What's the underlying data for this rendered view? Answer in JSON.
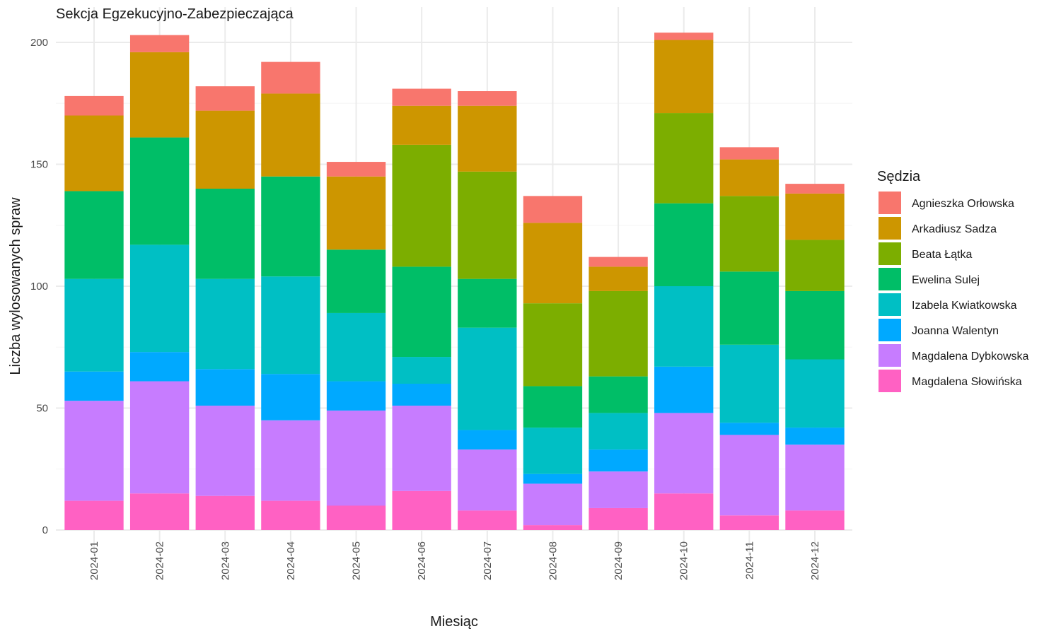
{
  "chart_data": {
    "type": "bar",
    "stacked": true,
    "title": "Sekcja Egzekucyjno-Zabezpieczająca",
    "xlabel": "Miesiąc",
    "ylabel": "Liczba wylosowanych spraw",
    "ylim": [
      0,
      208
    ],
    "yticks": [
      0,
      50,
      100,
      150,
      200
    ],
    "grid": true,
    "legend_title": "Sędzia",
    "legend_position": "right",
    "categories": [
      "2024-01",
      "2024-02",
      "2024-03",
      "2024-04",
      "2024-05",
      "2024-06",
      "2024-07",
      "2024-08",
      "2024-09",
      "2024-10",
      "2024-11",
      "2024-12"
    ],
    "series": [
      {
        "name": "Magdalena Słowińska",
        "color": "#FF61C3",
        "values": [
          12,
          15,
          14,
          12,
          10,
          16,
          8,
          2,
          9,
          15,
          6,
          8
        ]
      },
      {
        "name": "Magdalena Dybkowska",
        "color": "#C77CFF",
        "values": [
          41,
          46,
          37,
          33,
          39,
          35,
          25,
          17,
          15,
          33,
          33,
          27
        ]
      },
      {
        "name": "Joanna Walentyn",
        "color": "#00A9FF",
        "values": [
          12,
          12,
          15,
          19,
          12,
          9,
          8,
          4,
          9,
          19,
          5,
          7
        ]
      },
      {
        "name": "Izabela Kwiatkowska",
        "color": "#00BFC4",
        "values": [
          38,
          44,
          37,
          40,
          28,
          11,
          42,
          19,
          15,
          33,
          32,
          28
        ]
      },
      {
        "name": "Ewelina Sulej",
        "color": "#00BE67",
        "values": [
          36,
          44,
          37,
          41,
          26,
          37,
          20,
          17,
          15,
          34,
          30,
          28
        ]
      },
      {
        "name": "Beata Łątka",
        "color": "#7CAE00",
        "values": [
          0,
          0,
          0,
          0,
          0,
          50,
          44,
          34,
          35,
          37,
          31,
          21
        ]
      },
      {
        "name": "Arkadiusz Sadza",
        "color": "#CD9600",
        "values": [
          31,
          35,
          32,
          34,
          30,
          16,
          27,
          33,
          10,
          30,
          15,
          19
        ]
      },
      {
        "name": "Agnieszka Orłowska",
        "color": "#F8766D",
        "values": [
          8,
          7,
          10,
          13,
          6,
          7,
          6,
          11,
          4,
          3,
          5,
          4
        ]
      }
    ],
    "legend_order": [
      "Agnieszka Orłowska",
      "Arkadiusz Sadza",
      "Beata Łątka",
      "Ewelina Sulej",
      "Izabela Kwiatkowska",
      "Joanna Walentyn",
      "Magdalena Dybkowska",
      "Magdalena Słowińska"
    ]
  }
}
